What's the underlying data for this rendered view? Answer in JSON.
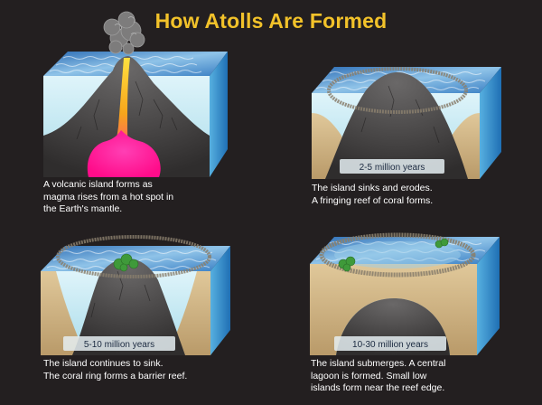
{
  "title": "How Atolls Are Formed",
  "stages": [
    {
      "age": "",
      "caption": [
        "A volcanic island forms as",
        "magma rises from a hot spot in",
        "the Earth's mantle."
      ]
    },
    {
      "age": "2-5 million years",
      "caption": [
        "The island sinks and erodes.",
        "A fringing reef of coral forms."
      ]
    },
    {
      "age": "5-10 million years",
      "caption": [
        "The island continues to sink.",
        "The coral ring forms a barrier reef."
      ]
    },
    {
      "age": "10-30 million years",
      "caption": [
        "The island submerges.  A central",
        "lagoon is formed.  Small low",
        "islands form near the reef edge."
      ]
    }
  ],
  "colors": {
    "background": "#231f20",
    "title": "#f2c22a",
    "water_face": "#bfe6f0",
    "water_side": "#2f86c8",
    "sea_top": "#3a7fc4",
    "rock": "#3a3838",
    "sediment": "#cfb68a",
    "magma": "#ff1fa0",
    "magma_conduit": "#f7c21b",
    "vegetation": "#3f9a3a"
  }
}
